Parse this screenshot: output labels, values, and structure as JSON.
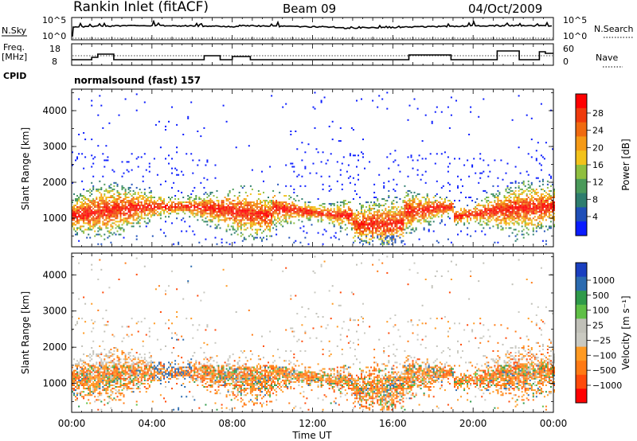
{
  "header": {
    "station": "Rankin Inlet (fitACF)",
    "beam": "Beam 09",
    "date": "04/Oct/2009"
  },
  "sky_panel": {
    "left_label": "N.Sky",
    "right_label": "N.Search",
    "right_ticks": [
      "10^5",
      "10^0"
    ],
    "left_ticks": [
      "10^5",
      "10^0"
    ]
  },
  "freq_panel": {
    "left_label_1": "Freq.",
    "left_label_2": "[MHz]",
    "left_ticks": [
      "18",
      "8"
    ],
    "right_label": "Nave",
    "right_ticks": [
      "60",
      "0"
    ],
    "cpid_label": "CPID",
    "cpid_text": "normalsound (fast) 157"
  },
  "colors": {
    "power_scale": [
      "#0a1cff",
      "#1f4fb8",
      "#2e7d6e",
      "#4a9a5a",
      "#8fbf3f",
      "#f2c21b",
      "#f59a16",
      "#f06a10",
      "#ef3a0c",
      "#ff0000"
    ],
    "velocity_scale": [
      "#ff0000",
      "#ff4a0a",
      "#ff7a14",
      "#ff9a22",
      "#c9c9c1",
      "#c0c0b8",
      "#5fbf46",
      "#2f9a4a",
      "#2b6bb0",
      "#1a3fc0"
    ]
  },
  "chart_data": [
    {
      "type": "heatmap",
      "name": "power",
      "ylabel": "Slant Range [km]",
      "yticks": [
        "4000",
        "3000",
        "2000",
        "1000"
      ],
      "ylim": [
        200,
        4600
      ],
      "xlim": [
        0,
        24
      ],
      "colorbar_label": "Power [dB]",
      "colorbar_ticks": [
        "28",
        "24",
        "20",
        "16",
        "12",
        "8",
        "4"
      ],
      "colorbar_range": [
        0,
        30
      ]
    },
    {
      "type": "heatmap",
      "name": "velocity",
      "ylabel": "Slant Range [km]",
      "yticks": [
        "4000",
        "3000",
        "2000",
        "1000"
      ],
      "ylim": [
        200,
        4600
      ],
      "xlim": [
        0,
        24
      ],
      "colorbar_label": "Velocity [m s⁻¹]",
      "colorbar_ticks": [
        "1000",
        "500",
        "100",
        "25",
        "−25",
        "−100",
        "−500",
        "−1000"
      ]
    }
  ],
  "xaxis": {
    "ticks": [
      "00:00",
      "04:00",
      "08:00",
      "12:00",
      "16:00",
      "20:00",
      "00:00"
    ],
    "label": "Time UT"
  }
}
